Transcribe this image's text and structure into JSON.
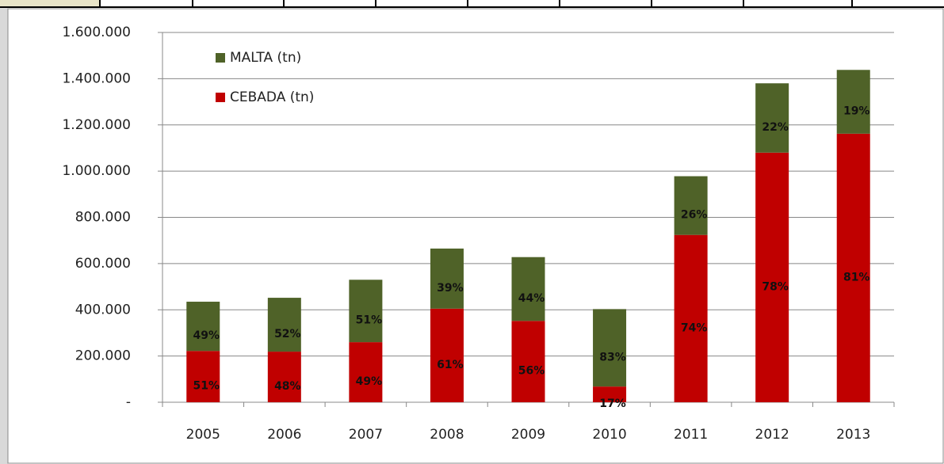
{
  "chart_data": {
    "type": "stacked_bar",
    "categories": [
      "2005",
      "2006",
      "2007",
      "2008",
      "2009",
      "2010",
      "2011",
      "2012",
      "2013"
    ],
    "series": [
      {
        "name": "CEBADA (tn)",
        "color": "#c00000",
        "values": [
          222000,
          219000,
          260000,
          405000,
          352000,
          68000,
          724000,
          1080000,
          1162000
        ],
        "percent_labels": [
          "51%",
          "48%",
          "49%",
          "61%",
          "56%",
          "17%",
          "74%",
          "78%",
          "81%"
        ]
      },
      {
        "name": "MALTA (tn)",
        "color": "#4f6228",
        "values": [
          213000,
          233000,
          270000,
          260000,
          276000,
          335000,
          254000,
          300000,
          276000
        ],
        "percent_labels": [
          "49%",
          "52%",
          "51%",
          "39%",
          "44%",
          "83%",
          "26%",
          "22%",
          "19%"
        ]
      }
    ],
    "ylim": [
      0,
      1600000
    ],
    "yticks": [
      {
        "value": 0,
        "label": "-"
      },
      {
        "value": 200000,
        "label": "200.000"
      },
      {
        "value": 400000,
        "label": "400.000"
      },
      {
        "value": 600000,
        "label": "600.000"
      },
      {
        "value": 800000,
        "label": "800.000"
      },
      {
        "value": 1000000,
        "label": "1.000.000"
      },
      {
        "value": 1200000,
        "label": "1.200.000"
      },
      {
        "value": 1400000,
        "label": "1.400.000"
      },
      {
        "value": 1600000,
        "label": "1.600.000"
      }
    ],
    "grid": true,
    "legend": "top-left"
  }
}
